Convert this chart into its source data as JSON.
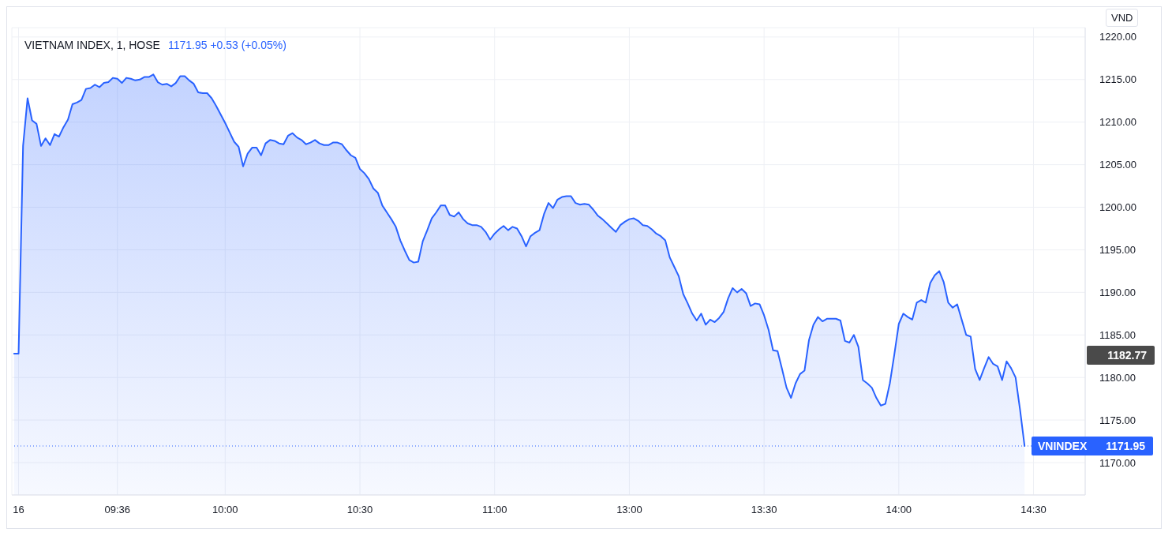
{
  "chart_data": {
    "type": "area",
    "title": "VIETNAM INDEX, 1, HOSE",
    "subtitle": "1171.95 +0.53 (+0.05%)",
    "ylabel": "VND",
    "categories": [
      null,
      "16",
      null,
      null,
      null,
      null,
      null,
      null,
      null,
      null,
      null,
      null,
      null,
      null,
      null,
      null,
      null,
      null,
      null,
      null,
      null,
      null,
      null,
      "09:36",
      null,
      null,
      null,
      null,
      null,
      null,
      null,
      null,
      null,
      null,
      null,
      null,
      null,
      null,
      null,
      null,
      null,
      null,
      null,
      null,
      null,
      null,
      null,
      "10:00",
      null,
      null,
      null,
      null,
      null,
      null,
      null,
      null,
      null,
      null,
      null,
      null,
      null,
      null,
      null,
      null,
      null,
      null,
      null,
      null,
      null,
      null,
      null,
      null,
      null,
      null,
      null,
      null,
      null,
      "10:30",
      null,
      null,
      null,
      null,
      null,
      null,
      null,
      null,
      null,
      null,
      null,
      null,
      null,
      null,
      null,
      null,
      null,
      null,
      null,
      null,
      null,
      null,
      null,
      null,
      null,
      null,
      null,
      null,
      null,
      "11:00",
      null,
      null,
      null,
      null,
      null,
      null,
      null,
      null,
      null,
      null,
      null,
      null,
      null,
      null,
      null,
      null,
      null,
      null,
      null,
      null,
      null,
      null,
      null,
      null,
      null,
      null,
      null,
      null,
      null,
      "13:00",
      null,
      null,
      null,
      null,
      null,
      null,
      null,
      null,
      null,
      null,
      null,
      null,
      null,
      null,
      null,
      null,
      null,
      null,
      null,
      null,
      null,
      null,
      null,
      null,
      null,
      null,
      null,
      null,
      null,
      "13:30",
      null,
      null,
      null,
      null,
      null,
      null,
      null,
      null,
      null,
      null,
      null,
      null,
      null,
      null,
      null,
      null,
      null,
      null,
      null,
      null,
      null,
      null,
      null,
      null,
      null,
      null,
      null,
      null,
      null,
      "14:00",
      null,
      null,
      null,
      null,
      null,
      null,
      null,
      null,
      null,
      null,
      null,
      null,
      null,
      null,
      null,
      null,
      null,
      null,
      null,
      null,
      null,
      null,
      null,
      null,
      null,
      null,
      null,
      null,
      null,
      "14:30",
      null,
      null,
      null,
      null,
      null,
      null,
      null,
      null,
      null,
      null,
      null
    ],
    "series": [
      {
        "name": "VNINDEX",
        "color": "#2962ff",
        "values": [
          1182.8,
          1182.8,
          1207.2,
          1212.8,
          1210.2,
          1209.8,
          1207.2,
          1208.1,
          1207.3,
          1208.6,
          1208.3,
          1209.4,
          1210.3,
          1212.1,
          1212.3,
          1212.6,
          1213.9,
          1214.0,
          1214.4,
          1214.1,
          1214.6,
          1214.7,
          1215.2,
          1215.1,
          1214.6,
          1215.2,
          1215.1,
          1214.9,
          1215.0,
          1215.3,
          1215.3,
          1215.6,
          1214.7,
          1214.4,
          1214.5,
          1214.2,
          1214.6,
          1215.4,
          1215.4,
          1214.9,
          1214.5,
          1213.5,
          1213.4,
          1213.4,
          1212.8,
          1211.9,
          1210.9,
          1209.9,
          1208.8,
          1207.7,
          1207.1,
          1204.8,
          1206.3,
          1207.0,
          1207.0,
          1206.1,
          1207.5,
          1207.9,
          1207.8,
          1207.5,
          1207.4,
          1208.4,
          1208.7,
          1208.2,
          1207.9,
          1207.4,
          1207.6,
          1207.9,
          1207.5,
          1207.3,
          1207.3,
          1207.6,
          1207.6,
          1207.4,
          1206.7,
          1206.1,
          1205.8,
          1204.5,
          1204.0,
          1203.3,
          1202.2,
          1201.7,
          1200.2,
          1199.4,
          1198.6,
          1197.7,
          1196.1,
          1194.9,
          1193.8,
          1193.5,
          1193.6,
          1196.0,
          1197.3,
          1198.7,
          1199.4,
          1200.2,
          1200.2,
          1199.1,
          1198.9,
          1199.4,
          1198.6,
          1198.1,
          1197.9,
          1197.9,
          1197.7,
          1197.1,
          1196.2,
          1196.9,
          1197.4,
          1197.8,
          1197.3,
          1197.7,
          1197.5,
          1196.6,
          1195.4,
          1196.6,
          1197.0,
          1197.3,
          1199.2,
          1200.5,
          1199.9,
          1200.9,
          1201.2,
          1201.3,
          1201.3,
          1200.5,
          1200.3,
          1200.4,
          1200.3,
          1199.7,
          1199.0,
          1198.6,
          1198.1,
          1197.6,
          1197.1,
          1197.9,
          1198.3,
          1198.6,
          1198.7,
          1198.4,
          1197.9,
          1197.8,
          1197.4,
          1196.9,
          1196.6,
          1196.1,
          1194.1,
          1193.0,
          1191.9,
          1189.8,
          1188.7,
          1187.5,
          1186.7,
          1187.5,
          1186.2,
          1186.8,
          1186.5,
          1187.0,
          1187.7,
          1189.3,
          1190.5,
          1190.0,
          1190.4,
          1189.9,
          1188.4,
          1188.7,
          1188.6,
          1187.3,
          1185.6,
          1183.2,
          1183.1,
          1181.0,
          1178.8,
          1177.6,
          1179.3,
          1180.4,
          1180.8,
          1184.4,
          1186.2,
          1187.1,
          1186.6,
          1186.9,
          1186.9,
          1186.9,
          1186.7,
          1184.3,
          1184.1,
          1185.0,
          1183.6,
          1179.7,
          1179.3,
          1178.8,
          1177.6,
          1176.7,
          1176.9,
          1179.3,
          1182.7,
          1186.3,
          1187.5,
          1187.1,
          1186.8,
          1188.8,
          1189.1,
          1188.8,
          1191.1,
          1192.0,
          1192.5,
          1191.2,
          1188.8,
          1188.2,
          1188.6,
          1186.8,
          1185.0,
          1184.8,
          1181.0,
          1179.7,
          1181.1,
          1182.4,
          1181.6,
          1181.3,
          1179.7,
          1181.9,
          1181.1,
          1180.0,
          1176.2,
          1171.95,
          null,
          null,
          null,
          null,
          null,
          null,
          null,
          null,
          null,
          null,
          null,
          null,
          null
        ]
      }
    ],
    "ylim": [
      1166.2,
      1221.1
    ],
    "yticks": [
      {
        "value": 1170,
        "label": "1170.00"
      },
      {
        "value": 1175,
        "label": "1175.00"
      },
      {
        "value": 1180,
        "label": "1180.00"
      },
      {
        "value": 1185,
        "label": "1185.00"
      },
      {
        "value": 1190,
        "label": "1190.00"
      },
      {
        "value": 1195,
        "label": "1195.00"
      },
      {
        "value": 1200,
        "label": "1200.00"
      },
      {
        "value": 1205,
        "label": "1205.00"
      },
      {
        "value": 1210,
        "label": "1210.00"
      },
      {
        "value": 1215,
        "label": "1215.00"
      },
      {
        "value": 1220,
        "label": "1220.00"
      }
    ],
    "grid": true,
    "ref_lines": [
      {
        "axis": "y",
        "value": 1171.95,
        "label": "1171.95",
        "color": "#2962ff",
        "line_style": "dotted"
      }
    ],
    "annotations": [
      "1182.77"
    ]
  }
}
